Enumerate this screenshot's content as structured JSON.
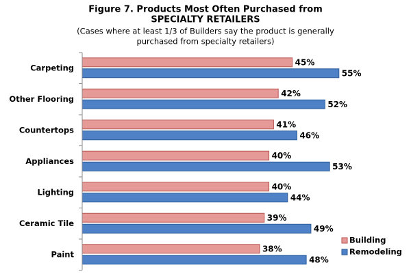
{
  "chart_data": {
    "type": "hbar",
    "title": [
      "Figure 7.  Products Most Often Purchased from",
      "SPECIALTY RETAILERS"
    ],
    "subtitle": [
      "(Cases where at least 1/3 of Builders say the product is generally",
      "purchased from specialty retailers)"
    ],
    "categories": [
      "Carpeting",
      "Other Flooring",
      "Countertops",
      "Appliances",
      "Lighting",
      "Ceramic Tile",
      "Paint"
    ],
    "xlim": [
      0,
      70
    ],
    "series": [
      {
        "name": "Building",
        "color": "#e59a98",
        "values": [
          45,
          42,
          41,
          40,
          40,
          39,
          38
        ],
        "value_labels": [
          "45%",
          "42%",
          "41%",
          "40%",
          "40%",
          "39%",
          "38%"
        ]
      },
      {
        "name": "Remodeling",
        "color": "#4f81c7",
        "values": [
          55,
          52,
          46,
          53,
          44,
          49,
          48
        ],
        "value_labels": [
          "55%",
          "52%",
          "46%",
          "53%",
          "44%",
          "49%",
          "48%"
        ]
      }
    ],
    "legend": "lower right"
  }
}
